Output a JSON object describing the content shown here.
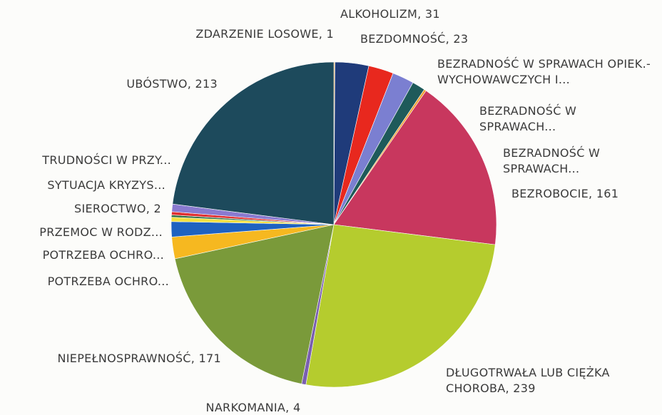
{
  "chart_data": {
    "type": "pie",
    "labels": [
      "ZDARZENIE LOSOWE, 1",
      "ALKOHOLIZM, 31",
      "BEZDOMNOŚĆ, 23",
      "BEZRADNOŚĆ W SPRAWACH OPIEK.-WYCHOWAWCZYCH I...",
      "BEZRADNOŚĆ W SPRAWACH...",
      "BEZRADNOŚĆ W SPRAWACH...",
      "BEZROBOCIE, 161",
      "DŁUGOTRWAŁA LUB CIĘŻKA CHOROBA, 239",
      "NARKOMANIA, 4",
      "NIEPEŁNOSPRAWNOŚĆ, 171",
      "POTRZEBA OCHRO...",
      "POTRZEBA OCHRO...",
      "PRZEMOC W RODZ...",
      "SIEROCTWO, 2",
      "SYTUACJA KRYZYS...",
      "TRUDNOŚCI W PRZY...",
      "UBÓSTWO, 213"
    ],
    "values": [
      1,
      31,
      23,
      20,
      12,
      2,
      161,
      239,
      4,
      171,
      20,
      14,
      4,
      2,
      3,
      7,
      213
    ],
    "colors": [
      "#e8a33c",
      "#1f3b7a",
      "#e8281e",
      "#7b7fd1",
      "#1e5a5a",
      "#f0a030",
      "#c8375e",
      "#b5cc2e",
      "#7a5fb0",
      "#7a9a3a",
      "#f6b820",
      "#1e62c0",
      "#f2e040",
      "#2f6d3f",
      "#e03030",
      "#8a7ad0",
      "#1d4a5c"
    ]
  }
}
